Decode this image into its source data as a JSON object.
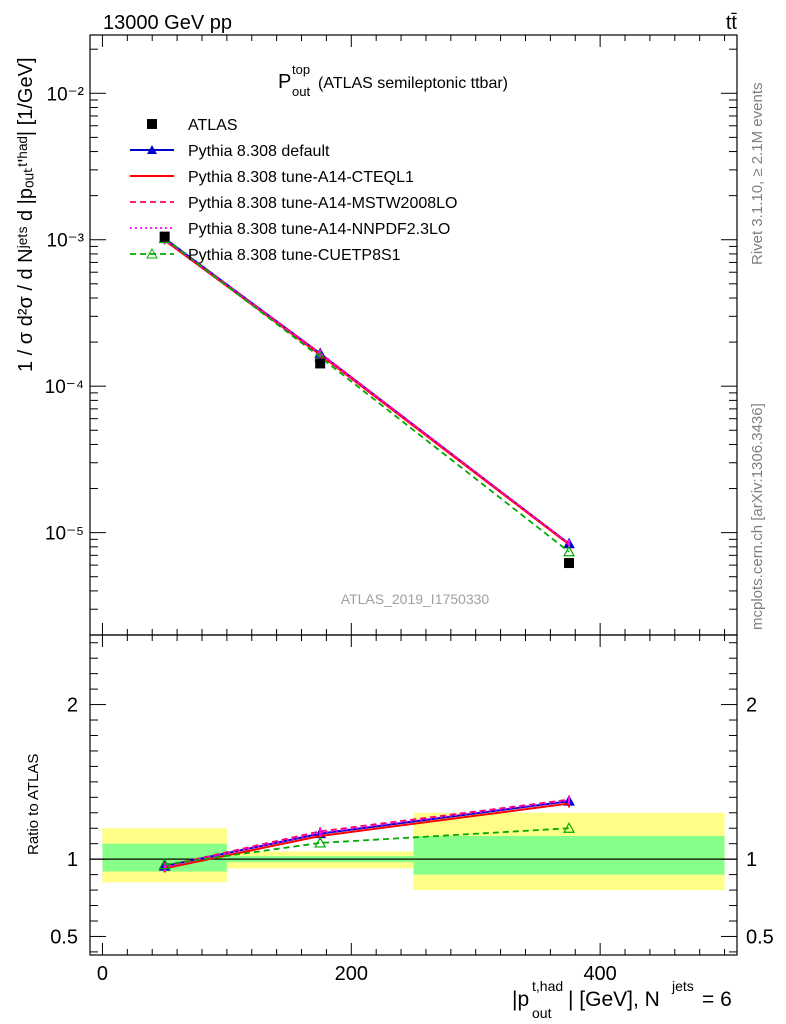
{
  "header": {
    "energy_label": "13000 GeV pp",
    "process_label": "tt̄"
  },
  "side_text": {
    "rivet": "Rivet 3.1.10, ≥ 2.1M events",
    "mcplots": "mcplots.cern.ch [arXiv:1306.3436]"
  },
  "chart_data": [
    {
      "type": "line",
      "title_main": "P",
      "title_sup": "top",
      "title_sub": "out",
      "title_rest": " (ATLAS semileptonic ttbar)",
      "watermark": "ATLAS_2019_I1750330",
      "ylabel": "1 / σ d²σ / d Nʲᵉᵗˢ d |pₒᵤₜᵗ'ʰᵃᵈ| [1/GeV]",
      "yscale": "log",
      "ylim": [
        2e-06,
        0.025
      ],
      "xlim": [
        -10,
        510
      ],
      "ytick_labels": [
        "10⁻²",
        "10⁻³",
        "10⁻⁴",
        "10⁻⁵"
      ],
      "legend_position": "top-left",
      "data": {
        "name": "ATLAS",
        "x": [
          50,
          175,
          375
        ],
        "y": [
          0.00105,
          0.000143,
          6.2e-06
        ]
      },
      "series": [
        {
          "name": "Pythia 8.308 default",
          "color": "#0000cc",
          "style": "solid",
          "marker": "triangle-filled",
          "x": [
            50,
            175,
            375
          ],
          "y": [
            0.00102,
            0.000167,
            8.4e-06
          ]
        },
        {
          "name": "Pythia 8.308 tune-A14-CTEQL1",
          "color": "#ff0000",
          "style": "solid",
          "marker": "none",
          "x": [
            50,
            175,
            375
          ],
          "y": [
            0.00099,
            0.000164,
            8.3e-06
          ]
        },
        {
          "name": "Pythia 8.308 tune-A14-MSTW2008LO",
          "color": "#ff0066",
          "style": "dashed",
          "marker": "none",
          "x": [
            50,
            175,
            375
          ],
          "y": [
            0.00101,
            0.000168,
            8.4e-06
          ]
        },
        {
          "name": "Pythia 8.308 tune-A14-NNPDF2.3LO",
          "color": "#ff00ff",
          "style": "dotted",
          "marker": "none",
          "x": [
            50,
            175,
            375
          ],
          "y": [
            0.001,
            0.000166,
            8.4e-06
          ]
        },
        {
          "name": "Pythia 8.308 tune-CUETP8S1",
          "color": "#00aa00",
          "style": "dashed",
          "marker": "triangle-open",
          "x": [
            50,
            175,
            375
          ],
          "y": [
            0.00102,
            0.000158,
            7.4e-06
          ]
        }
      ]
    },
    {
      "type": "line",
      "ylabel": "Ratio to ATLAS",
      "xlabel_main": "|p",
      "xlabel_sup": "t,had",
      "xlabel_sub": "out",
      "xlabel_rest": "| [GeV], N",
      "xlabel_sup2": "jets",
      "xlabel_end": " = 6",
      "ylim": [
        0.38,
        2.45
      ],
      "xlim": [
        -10,
        510
      ],
      "xticks": [
        0,
        200,
        400
      ],
      "yticks": [
        0.5,
        1,
        2
      ],
      "bands": [
        {
          "x": [
            0,
            100
          ],
          "inner": [
            0.92,
            1.1
          ],
          "outer": [
            0.85,
            1.2
          ]
        },
        {
          "x": [
            100,
            250
          ],
          "inner": [
            0.98,
            1.02
          ],
          "outer": [
            0.94,
            1.05
          ]
        },
        {
          "x": [
            250,
            500
          ],
          "inner": [
            0.9,
            1.15
          ],
          "outer": [
            0.8,
            1.3
          ]
        }
      ],
      "ratio_series": [
        {
          "name": "Pythia 8.308 default",
          "color": "#0000cc",
          "style": "solid",
          "marker": "triangle-filled",
          "x": [
            50,
            175,
            375
          ],
          "y": [
            0.955,
            1.165,
            1.375
          ]
        },
        {
          "name": "Pythia 8.308 tune-A14-CTEQL1",
          "color": "#ff0000",
          "style": "solid",
          "marker": "none",
          "x": [
            50,
            175,
            375
          ],
          "y": [
            0.94,
            1.15,
            1.36
          ]
        },
        {
          "name": "Pythia 8.308 tune-A14-MSTW2008LO",
          "color": "#ff0066",
          "style": "dashed",
          "marker": "none",
          "x": [
            50,
            175,
            375
          ],
          "y": [
            0.955,
            1.18,
            1.385
          ]
        },
        {
          "name": "Pythia 8.308 tune-A14-NNPDF2.3LO",
          "color": "#ff00ff",
          "style": "dotted",
          "marker": "none",
          "x": [
            50,
            175,
            375
          ],
          "y": [
            0.95,
            1.17,
            1.38
          ]
        },
        {
          "name": "Pythia 8.308 tune-CUETP8S1",
          "color": "#00aa00",
          "style": "dashed",
          "marker": "triangle-open",
          "x": [
            50,
            175,
            375
          ],
          "y": [
            0.965,
            1.105,
            1.2
          ]
        }
      ]
    }
  ]
}
